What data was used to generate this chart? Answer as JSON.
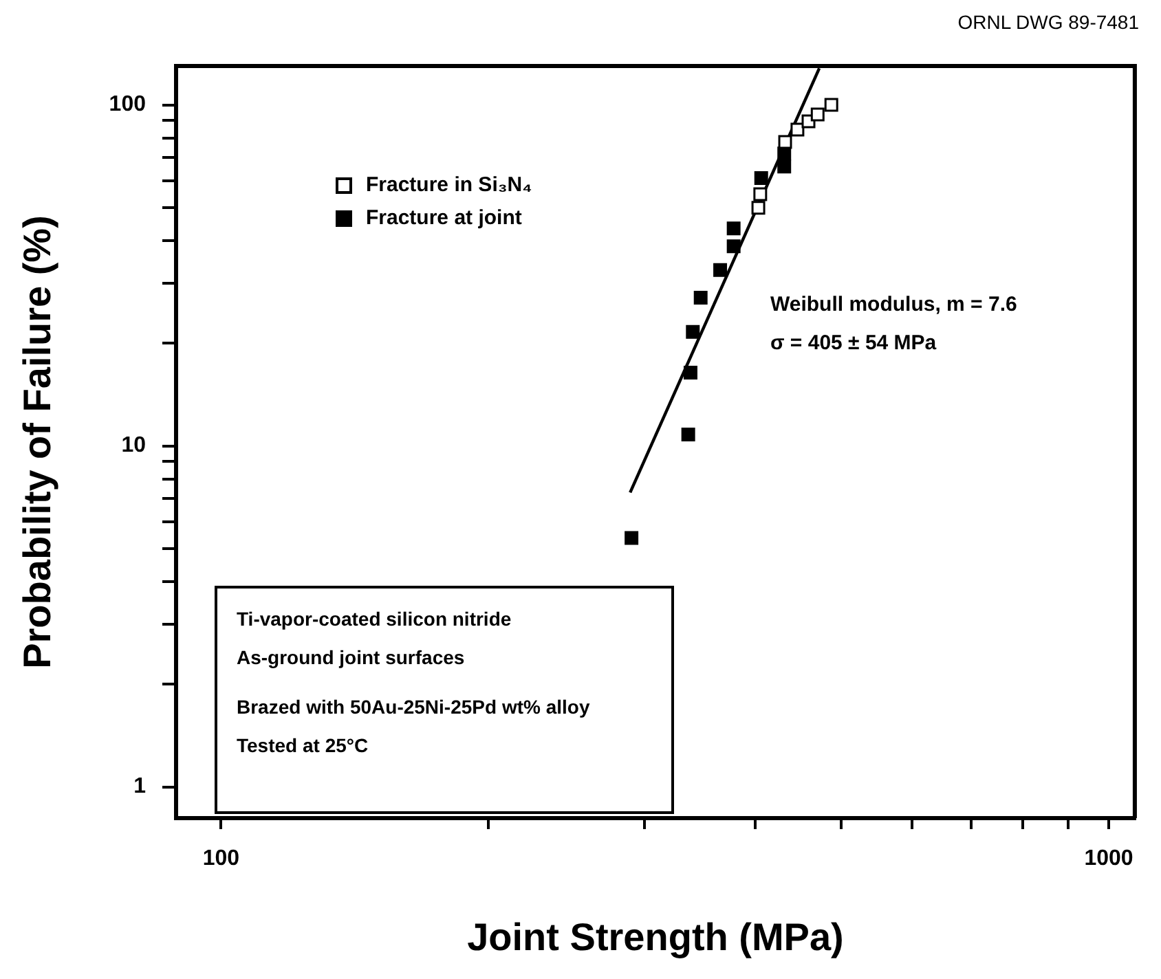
{
  "chart_data": {
    "type": "scatter",
    "xlabel": "Joint Strength (MPa)",
    "ylabel": "Probability of Failure (%)",
    "log": "xy",
    "grid": false,
    "legend": "top left",
    "marker": "square",
    "xlim": [
      89,
      1070
    ],
    "xticks": [
      100,
      {
        "value": 200,
        "label": null
      },
      {
        "value": 300,
        "label": null
      },
      {
        "value": 400,
        "label": null
      },
      {
        "value": 500,
        "label": null
      },
      {
        "value": 600,
        "label": null
      },
      {
        "value": 700,
        "label": null
      },
      {
        "value": 800,
        "label": null
      },
      {
        "value": 900,
        "label": null
      },
      1000
    ],
    "ylim": [
      0.81,
      130
    ],
    "yticks": [
      1,
      {
        "value": 2,
        "label": null
      },
      {
        "value": 3,
        "label": null
      },
      {
        "value": 4,
        "label": null
      },
      {
        "value": 5,
        "label": null
      },
      {
        "value": 6,
        "label": null
      },
      {
        "value": 7,
        "label": null
      },
      {
        "value": 8,
        "label": null
      },
      {
        "value": 9,
        "label": null
      },
      10,
      {
        "value": 20,
        "label": null
      },
      {
        "value": 30,
        "label": null
      },
      {
        "value": 40,
        "label": null
      },
      {
        "value": 50,
        "label": null
      },
      {
        "value": 60,
        "label": null
      },
      {
        "value": 70,
        "label": null
      },
      {
        "value": 80,
        "label": null
      },
      {
        "value": 90,
        "label": null
      },
      100
    ],
    "series": [
      {
        "name": "Fracture in Si₃N₄",
        "color": "#000000",
        "x": [
          405,
          403,
          432,
          446,
          459,
          470,
          487
        ],
        "values": [
          54.7,
          49.9,
          77.8,
          84.6,
          89.5,
          93.7,
          100
        ]
      },
      {
        "name": "Fracture at joint",
        "color": "#000000",
        "x": [
          290,
          336,
          338,
          340,
          347,
          365,
          378,
          378,
          406,
          431,
          431
        ],
        "values": [
          5.37,
          10.8,
          16.4,
          21.6,
          27.2,
          32.8,
          38.5,
          43.4,
          61,
          65.9,
          72
        ]
      },
      {
        "type": "line",
        "color": "#000000",
        "marker": "none",
        "x": [
          289,
          472
        ],
        "values": [
          7.3,
          128
        ]
      }
    ],
    "annotations": [
      "ORNL DWG 89-7481",
      "Weibull modulus, m = 7.6",
      "σ = 405 ± 54 MPa",
      "Ti-vapor-coated silicon nitride",
      "As-ground joint surfaces",
      "Brazed with 50Au-25Ni-25Pd wt% alloy",
      "Tested at 25°C"
    ]
  }
}
